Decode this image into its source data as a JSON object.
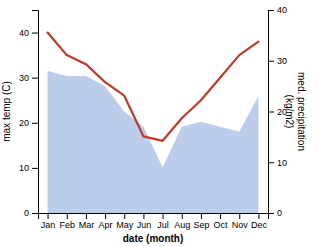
{
  "chart_data": {
    "type": "line",
    "categories": [
      "Jan",
      "Feb",
      "Mar",
      "Apr",
      "May",
      "Jun",
      "Jul",
      "Aug",
      "Sep",
      "Oct",
      "Nov",
      "Dec"
    ],
    "x_label": "date (month)",
    "y_label": "max temp (C)",
    "y2_label": "med. precipitation\n(kg/m2)",
    "ylim": [
      0,
      45
    ],
    "yticks": [
      0,
      10,
      20,
      30,
      40
    ],
    "y2lim": [
      0,
      40
    ],
    "y2ticks": [
      0,
      10,
      20,
      30,
      40
    ],
    "series": [
      {
        "type": "area",
        "axis": "y2",
        "color": "#b0c4e8",
        "values": [
          28,
          27,
          27,
          25,
          20,
          17,
          9,
          17,
          18,
          17,
          16,
          23
        ]
      },
      {
        "type": "line",
        "color": "#c0392b",
        "values": [
          40,
          35,
          33,
          29,
          26,
          17,
          16,
          21,
          25,
          30,
          35,
          38
        ]
      }
    ]
  }
}
